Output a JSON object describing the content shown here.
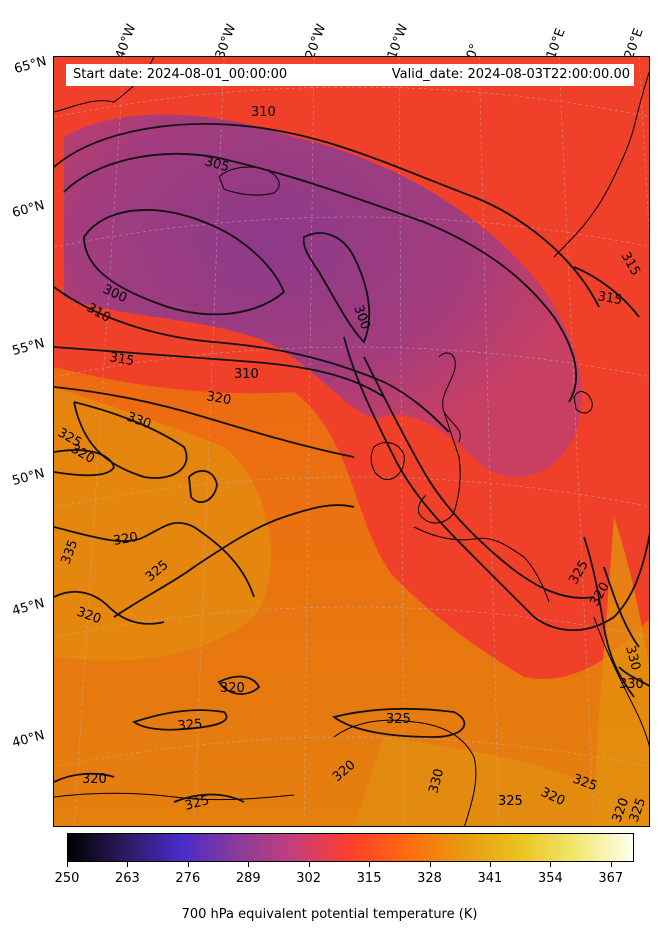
{
  "info": {
    "start": "Start date: 2024-08-01_00:00:00",
    "valid": "Valid_date: 2024-08-03T22:00:00.00"
  },
  "longitude_labels": [
    "40°W",
    "30°W",
    "20°W",
    "10°W",
    "0°",
    "10°E",
    "20°E"
  ],
  "latitude_labels": [
    "65°N",
    "60°N",
    "55°N",
    "50°N",
    "45°N",
    "40°N"
  ],
  "contour_labels": [
    "310",
    "305",
    "300",
    "310",
    "300",
    "315",
    "310",
    "320",
    "330",
    "325",
    "320",
    "320",
    "335",
    "325",
    "320",
    "320",
    "325",
    "325",
    "330",
    "320",
    "325",
    "320",
    "315",
    "315",
    "325",
    "320",
    "330",
    "325",
    "330",
    "325",
    "320",
    "320",
    "325"
  ],
  "colorbar": {
    "ticks": [
      "250",
      "263",
      "276",
      "289",
      "302",
      "315",
      "328",
      "341",
      "354",
      "367"
    ],
    "label": "700 hPa equivalent potential temperature (K)",
    "range": [
      250,
      372
    ],
    "colors": [
      "#000000",
      "#2a1b5e",
      "#4a2bc9",
      "#8a3b9a",
      "#c43f7a",
      "#ff3e2a",
      "#ff6a10",
      "#e89a10",
      "#e9c320",
      "#f2e870",
      "#fffff0"
    ]
  },
  "map": {
    "colors": {
      "low": "#8e3c86",
      "mid": "#f03a2c",
      "warm": "#e86a10",
      "warmer": "#e0900c",
      "coast": "#000000"
    }
  }
}
